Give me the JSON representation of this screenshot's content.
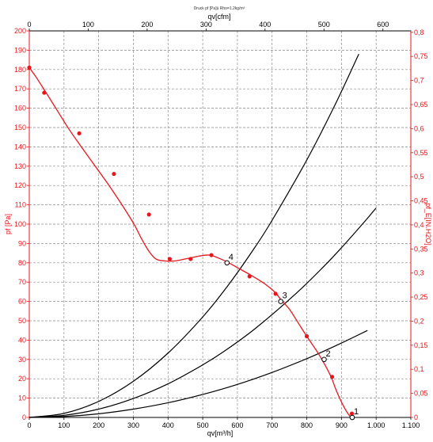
{
  "chart_data": {
    "type": "line",
    "title": "Druck pf [Pa]ü Rho=1.2kg/m³",
    "xlabel": "qv[m³/h]",
    "x2label": "qv[cfm]",
    "ylabel": "pf [Pa]",
    "y2label": "pf_E[IN.H2O]",
    "xlim": [
      0,
      1100
    ],
    "ylim": [
      0,
      200
    ],
    "x2lim": [
      0,
      647.4
    ],
    "y2lim": [
      0,
      0.803
    ],
    "x_ticks": [
      {
        "value": 0,
        "label": "0"
      },
      {
        "value": 100,
        "label": "100"
      },
      {
        "value": 200,
        "label": "200"
      },
      {
        "value": 300,
        "label": "300"
      },
      {
        "value": 400,
        "label": "400"
      },
      {
        "value": 500,
        "label": "500"
      },
      {
        "value": 600,
        "label": "600"
      },
      {
        "value": 700,
        "label": "700"
      },
      {
        "value": 800,
        "label": "800"
      },
      {
        "value": 900,
        "label": "900"
      },
      {
        "value": 1000,
        "label": "1.000"
      },
      {
        "value": 1100,
        "label": "1.100"
      }
    ],
    "x2_ticks": [
      {
        "value": 0,
        "label": "0"
      },
      {
        "value": 100,
        "label": "100"
      },
      {
        "value": 200,
        "label": "200"
      },
      {
        "value": 300,
        "label": "300"
      },
      {
        "value": 400,
        "label": "400"
      },
      {
        "value": 500,
        "label": "500"
      },
      {
        "value": 600,
        "label": "600"
      }
    ],
    "y_ticks": [
      {
        "value": 0,
        "label": "0"
      },
      {
        "value": 10,
        "label": "10"
      },
      {
        "value": 20,
        "label": "20"
      },
      {
        "value": 30,
        "label": "30"
      },
      {
        "value": 40,
        "label": "40"
      },
      {
        "value": 50,
        "label": "50"
      },
      {
        "value": 60,
        "label": "60"
      },
      {
        "value": 70,
        "label": "70"
      },
      {
        "value": 80,
        "label": "80"
      },
      {
        "value": 90,
        "label": "90"
      },
      {
        "value": 100,
        "label": "100"
      },
      {
        "value": 110,
        "label": "110"
      },
      {
        "value": 120,
        "label": "120"
      },
      {
        "value": 130,
        "label": "130"
      },
      {
        "value": 140,
        "label": "140"
      },
      {
        "value": 150,
        "label": "150"
      },
      {
        "value": 160,
        "label": "160"
      },
      {
        "value": 170,
        "label": "170"
      },
      {
        "value": 180,
        "label": "180"
      },
      {
        "value": 190,
        "label": "190"
      },
      {
        "value": 200,
        "label": "200"
      }
    ],
    "y2_ticks": [
      {
        "value": 0,
        "label": "0"
      },
      {
        "value": 0.05,
        "label": "0,05"
      },
      {
        "value": 0.1,
        "label": "0,1"
      },
      {
        "value": 0.15,
        "label": "0,15"
      },
      {
        "value": 0.2,
        "label": "0,2"
      },
      {
        "value": 0.25,
        "label": "0,25"
      },
      {
        "value": 0.3,
        "label": "0,3"
      },
      {
        "value": 0.35,
        "label": "0,35"
      },
      {
        "value": 0.4,
        "label": "0,4"
      },
      {
        "value": 0.45,
        "label": "0,45"
      },
      {
        "value": 0.5,
        "label": "0,5"
      },
      {
        "value": 0.55,
        "label": "0,55"
      },
      {
        "value": 0.6,
        "label": "0,6"
      },
      {
        "value": 0.65,
        "label": "0,65"
      },
      {
        "value": 0.7,
        "label": "0,7"
      },
      {
        "value": 0.75,
        "label": "0,75"
      },
      {
        "value": 0.8,
        "label": "0,8"
      }
    ],
    "grid": true,
    "fan_curve": {
      "color": "#e8161c",
      "curve": [
        [
          0,
          181
        ],
        [
          20,
          176
        ],
        [
          45,
          169
        ],
        [
          80,
          159
        ],
        [
          115,
          149
        ],
        [
          150,
          140
        ],
        [
          190,
          130
        ],
        [
          230,
          120
        ],
        [
          260,
          112
        ],
        [
          285,
          105
        ],
        [
          305,
          99
        ],
        [
          325,
          92
        ],
        [
          345,
          86
        ],
        [
          365,
          82
        ],
        [
          390,
          81
        ],
        [
          420,
          81
        ],
        [
          450,
          82
        ],
        [
          490,
          83.5
        ],
        [
          520,
          84
        ],
        [
          545,
          82.5
        ],
        [
          570,
          80.5
        ],
        [
          600,
          77.5
        ],
        [
          640,
          73.5
        ],
        [
          680,
          69
        ],
        [
          710,
          64.5
        ],
        [
          725,
          61
        ],
        [
          750,
          56
        ],
        [
          775,
          49
        ],
        [
          800,
          42
        ],
        [
          830,
          34
        ],
        [
          850,
          28
        ],
        [
          870,
          21
        ],
        [
          885,
          14
        ],
        [
          900,
          8
        ],
        [
          915,
          3
        ],
        [
          927,
          0
        ]
      ],
      "markers": [
        [
          0,
          181
        ],
        [
          43,
          168
        ],
        [
          144,
          147
        ],
        [
          244,
          126
        ],
        [
          345,
          105
        ],
        [
          405,
          82
        ],
        [
          465,
          82
        ],
        [
          525,
          84
        ],
        [
          635,
          73
        ],
        [
          710,
          64
        ],
        [
          800,
          42
        ],
        [
          873,
          21
        ],
        [
          930,
          2
        ]
      ]
    },
    "system_curves": [
      {
        "points": [
          [
            0,
            0
          ],
          [
            100,
            1.1
          ],
          [
            200,
            4.3
          ],
          [
            300,
            9.8
          ],
          [
            400,
            17.4
          ],
          [
            500,
            27.2
          ],
          [
            560,
            34
          ],
          [
            650,
            45.8
          ],
          [
            767,
            63.8
          ],
          [
            850,
            78.3
          ],
          [
            900,
            87.8
          ],
          [
            970,
            102
          ],
          [
            1000,
            108.4
          ]
        ]
      },
      {
        "points": [
          [
            0,
            0
          ],
          [
            100,
            2.1
          ],
          [
            200,
            8.3
          ],
          [
            300,
            18.7
          ],
          [
            400,
            33.3
          ],
          [
            500,
            52
          ],
          [
            576,
            69
          ],
          [
            650,
            87.9
          ],
          [
            700,
            102
          ],
          [
            800,
            133.2
          ],
          [
            880,
            161.2
          ],
          [
            950,
            188
          ]
        ]
      },
      {
        "points": [
          [
            0,
            0
          ],
          [
            100,
            0.5
          ],
          [
            200,
            1.9
          ],
          [
            300,
            4.3
          ],
          [
            400,
            7.6
          ],
          [
            500,
            11.9
          ],
          [
            600,
            17.1
          ],
          [
            700,
            23.3
          ],
          [
            800,
            30.4
          ],
          [
            848,
            34.2
          ],
          [
            900,
            38.5
          ],
          [
            975,
            45
          ]
        ]
      }
    ],
    "operating_points": [
      {
        "label": "1",
        "x": 931,
        "y": 0
      },
      {
        "label": "2",
        "x": 850,
        "y": 30
      },
      {
        "label": "3",
        "x": 725,
        "y": 60
      },
      {
        "label": "4",
        "x": 570,
        "y": 80
      }
    ]
  }
}
